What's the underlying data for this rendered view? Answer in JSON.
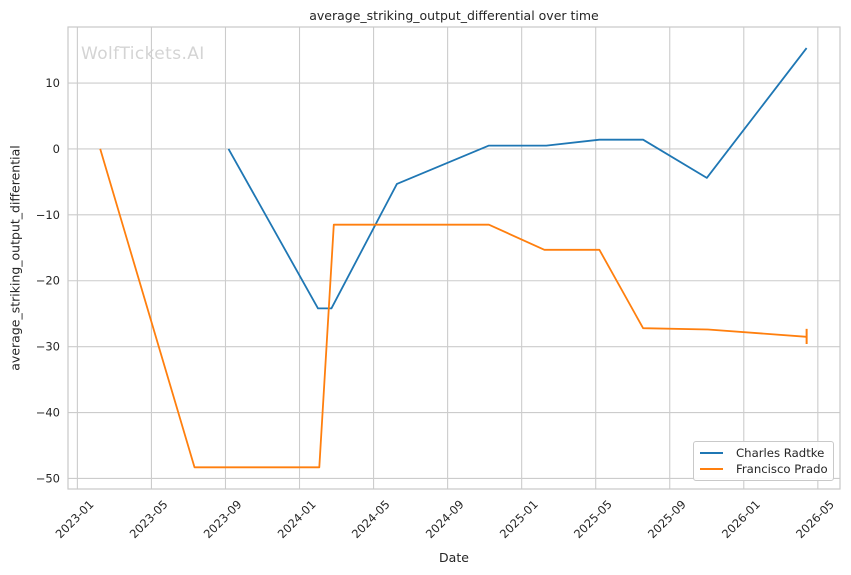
{
  "watermark": "WolfTickets.AI",
  "chart_data": {
    "type": "line",
    "title": "average_striking_output_differential over time",
    "xlabel": "Date",
    "ylabel": "average_striking_output_differential",
    "x_ticks": [
      "2023-01",
      "2023-05",
      "2023-09",
      "2024-01",
      "2024-05",
      "2024-09",
      "2025-01",
      "2025-05",
      "2025-09",
      "2026-01",
      "2026-05"
    ],
    "y_ticks": [
      10,
      0,
      -10,
      -20,
      -30,
      -40,
      -50
    ],
    "xlim": [
      "2022-12-16",
      "2026-06-07"
    ],
    "ylim": [
      -51.6,
      18.5
    ],
    "grid": true,
    "legend_position": "lower right",
    "colors": {
      "grid": "#cccccc",
      "spine": "#c9c9c9",
      "text": "#262626",
      "watermark": "#d4d4d4"
    },
    "series": [
      {
        "name": "Charles Radtke",
        "color": "#1f77b4",
        "points": [
          [
            "2023-09-06",
            0.0
          ],
          [
            "2024-02-01",
            -24.2
          ],
          [
            "2024-02-23",
            -24.2
          ],
          [
            "2024-06-09",
            -5.3
          ],
          [
            "2024-11-08",
            0.5
          ],
          [
            "2025-02-11",
            0.5
          ],
          [
            "2025-05-07",
            1.4
          ],
          [
            "2025-07-18",
            1.4
          ],
          [
            "2025-11-01",
            -4.4
          ],
          [
            "2026-04-13",
            15.3
          ]
        ]
      },
      {
        "name": "Francisco Prado",
        "color": "#ff7f0e",
        "points": [
          [
            "2023-02-08",
            0.0
          ],
          [
            "2023-07-11",
            -48.3
          ],
          [
            "2024-02-03",
            -48.3
          ],
          [
            "2024-02-27",
            -11.5
          ],
          [
            "2024-11-08",
            -11.5
          ],
          [
            "2025-02-08",
            -15.3
          ],
          [
            "2025-05-07",
            -15.3
          ],
          [
            "2025-07-18",
            -27.2
          ],
          [
            "2025-11-03",
            -27.4
          ],
          [
            "2026-04-13",
            -28.5
          ]
        ],
        "last_point_error_bar": [
          -29.6,
          -27.3
        ]
      }
    ]
  }
}
